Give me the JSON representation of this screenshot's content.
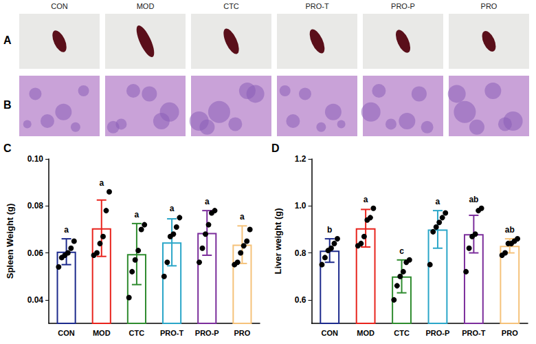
{
  "photos": {
    "letter": "A",
    "labels": [
      "CON",
      "MOD",
      "CTC",
      "PRO-T",
      "PRO-P",
      "PRO"
    ]
  },
  "histology": {
    "letter": "B"
  },
  "chart_data": [
    {
      "type": "bar",
      "panel": "C",
      "y_label": "Spleen Weight (g)",
      "categories": [
        "CON",
        "MOD",
        "CTC",
        "PRO-T",
        "PRO-P",
        "PRO"
      ],
      "values": [
        0.0605,
        0.0705,
        0.0595,
        0.0645,
        0.0685,
        0.0635
      ],
      "errors": [
        0.0055,
        0.012,
        0.013,
        0.01,
        0.0095,
        0.008
      ],
      "points": [
        [
          0.054,
          0.058,
          0.059,
          0.06,
          0.062,
          0.065
        ],
        [
          0.059,
          0.06,
          0.064,
          0.067,
          0.078,
          0.086
        ],
        [
          0.041,
          0.052,
          0.057,
          0.061,
          0.07,
          0.072
        ],
        [
          0.05,
          0.056,
          0.067,
          0.068,
          0.071,
          0.075
        ],
        [
          0.056,
          0.062,
          0.068,
          0.072,
          0.077,
          0.078
        ],
        [
          0.055,
          0.056,
          0.06,
          0.063,
          0.065,
          0.07
        ]
      ],
      "annotations": [
        "a",
        "a",
        "a",
        "a",
        "a",
        "a"
      ],
      "colors": [
        "#1c2a8c",
        "#e8231c",
        "#2e8b2e",
        "#2aa6c8",
        "#7b2d9b",
        "#f5c27a"
      ],
      "ylim": [
        0.03,
        0.1
      ],
      "yticks": [
        0.04,
        0.06,
        0.08,
        {
          "value": 0.1,
          "label": "0.10"
        }
      ],
      "grid": false
    },
    {
      "type": "bar",
      "panel": "D",
      "y_label": "Liver weight (g)",
      "categories": [
        "CON",
        "MOD",
        "CTC",
        "PRO-P",
        "PRO-T",
        "PRO"
      ],
      "values": [
        0.81,
        0.905,
        0.7,
        0.9,
        0.88,
        0.83
      ],
      "errors": [
        0.05,
        0.08,
        0.07,
        0.08,
        0.08,
        0.03
      ],
      "points": [
        [
          0.75,
          0.78,
          0.81,
          0.82,
          0.84,
          0.86
        ],
        [
          0.83,
          0.84,
          0.87,
          0.94,
          0.95,
          0.99
        ],
        [
          0.6,
          0.66,
          0.7,
          0.72,
          0.76,
          0.77
        ],
        [
          0.75,
          0.89,
          0.91,
          0.93,
          0.95,
          0.97
        ],
        [
          0.72,
          0.82,
          0.87,
          0.88,
          0.98,
          0.99
        ],
        [
          0.79,
          0.8,
          0.84,
          0.84,
          0.85,
          0.86
        ]
      ],
      "annotations": [
        "b",
        "a",
        "c",
        "a",
        "ab",
        "ab"
      ],
      "colors": [
        "#1c2a8c",
        "#e8231c",
        "#2e8b2e",
        "#2aa6c8",
        "#7b2d9b",
        "#f5c27a"
      ],
      "ylim": [
        0.5,
        1.2
      ],
      "yticks": [
        0.6,
        0.8,
        {
          "value": 1.0,
          "label": "1.0"
        },
        1.2
      ],
      "grid": false
    }
  ]
}
